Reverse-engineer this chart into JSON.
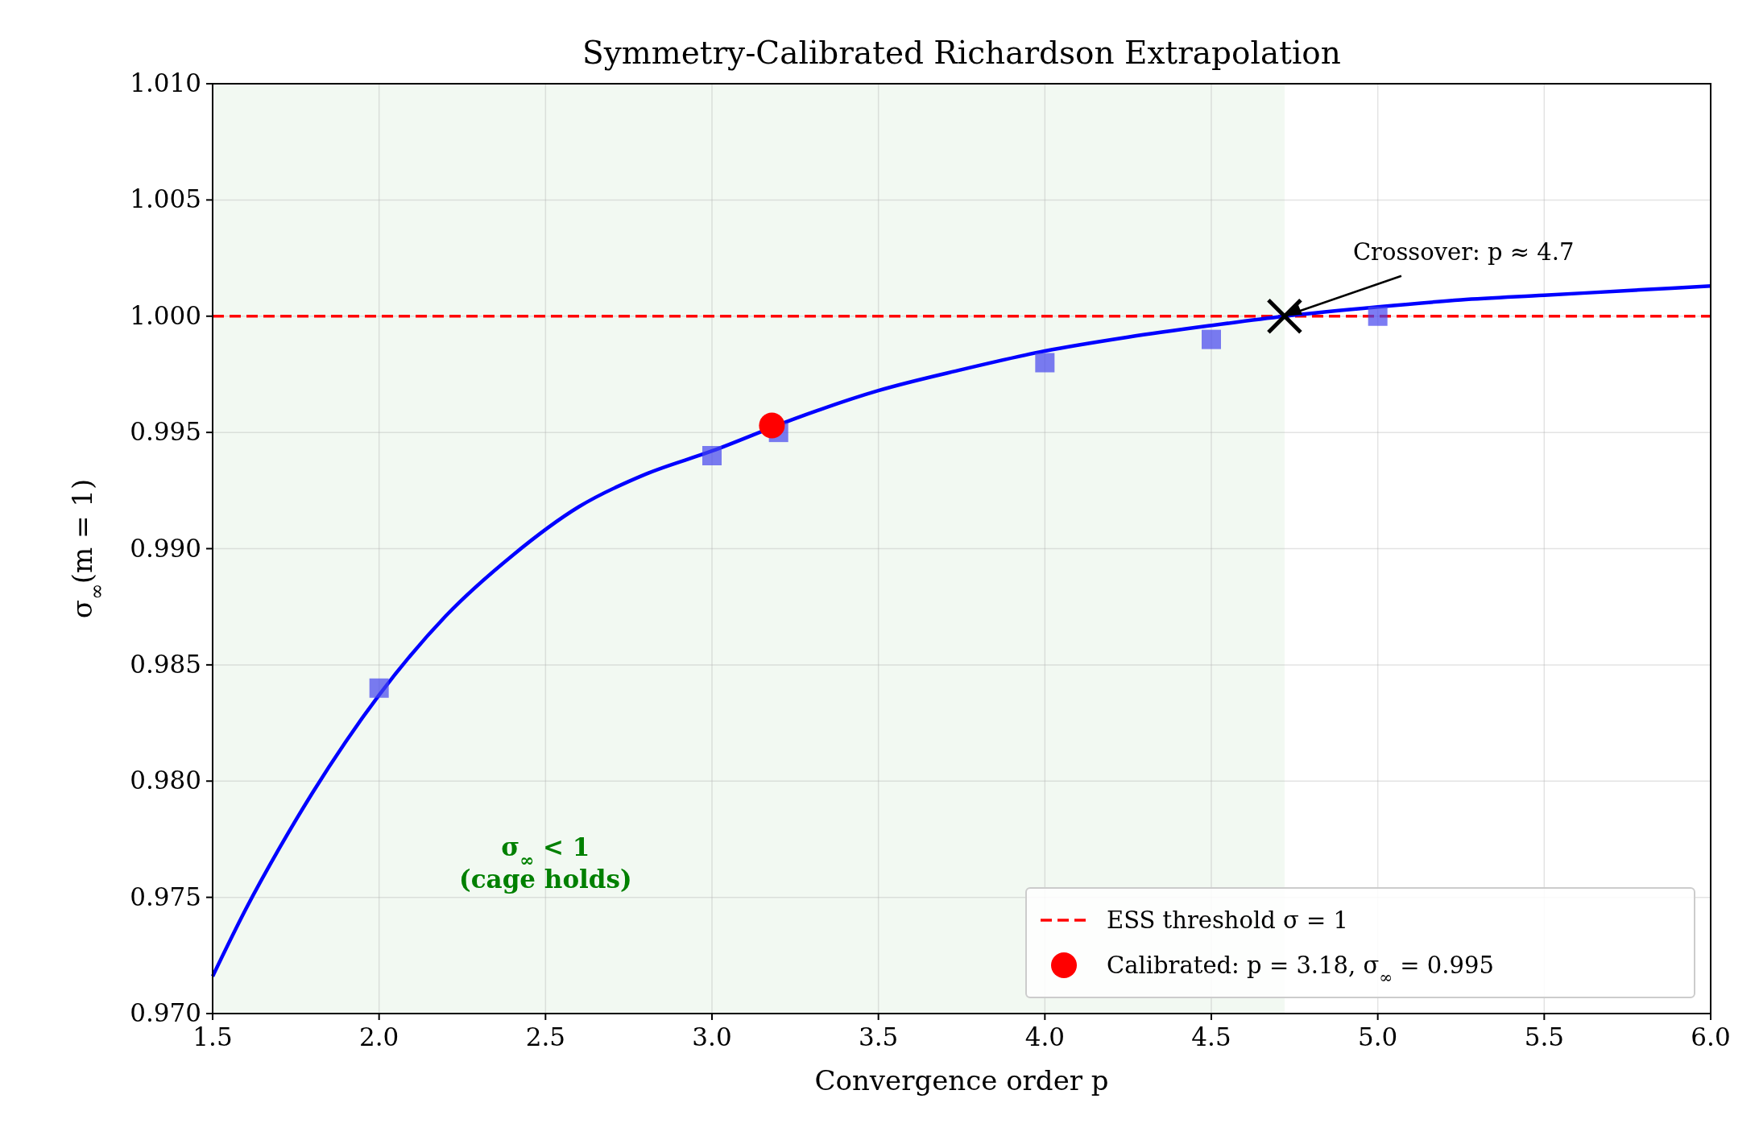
{
  "chart_data": {
    "type": "line",
    "title": "Symmetry-Calibrated Richardson Extrapolation",
    "xlabel": "Convergence order p",
    "ylabel": "σ$_{∞}$(m = 1)",
    "xlim": [
      1.5,
      6.0
    ],
    "ylim": [
      0.97,
      1.01
    ],
    "xticks": [
      1.5,
      {
        "value": 2,
        "label": "2.0"
      },
      2.5,
      {
        "value": 3,
        "label": "3.0"
      },
      3.5,
      {
        "value": 4,
        "label": "4.0"
      },
      4.5,
      {
        "value": 5,
        "label": "5.0"
      },
      5.5,
      {
        "value": 6,
        "label": "6.0"
      }
    ],
    "yticks": [
      {
        "value": 0.97,
        "label": "0.970"
      },
      {
        "value": 0.975,
        "label": "0.975"
      },
      {
        "value": 0.98,
        "label": "0.980"
      },
      {
        "value": 0.985,
        "label": "0.985"
      },
      {
        "value": 0.99,
        "label": "0.990"
      },
      {
        "value": 0.995,
        "label": "0.995"
      },
      {
        "value": 1.0,
        "label": "1.000"
      },
      {
        "value": 1.005,
        "label": "1.005"
      },
      {
        "value": 1.01,
        "label": "1.010"
      }
    ],
    "grid": true,
    "legend": "bottom right",
    "series": [
      {
        "color": "#0000ff",
        "marker": "none",
        "line_style": "solid",
        "x": [
          1.5,
          1.6,
          1.7,
          1.8,
          1.9,
          2.0,
          2.2,
          2.4,
          2.6,
          2.8,
          3.0,
          3.25,
          3.5,
          3.75,
          4.0,
          4.25,
          4.5,
          4.72,
          5.0,
          5.25,
          5.5,
          5.75,
          6.0
        ],
        "values": [
          0.9716,
          0.9745,
          0.9771,
          0.9795,
          0.9817,
          0.9837,
          0.9871,
          0.9897,
          0.9918,
          0.9932,
          0.9942,
          0.9956,
          0.9968,
          0.9977,
          0.9985,
          0.9991,
          0.9996,
          1.0,
          1.0004,
          1.0007,
          1.0009,
          1.0011,
          1.0013
        ]
      },
      {
        "type": "scatter",
        "color": "#4444ee",
        "marker": "square",
        "x": [
          2.0,
          3.0,
          3.2,
          4.0,
          4.5,
          5.0
        ],
        "values": [
          0.984,
          0.994,
          0.995,
          0.998,
          0.999,
          1.0
        ]
      },
      {
        "type": "scatter",
        "name": "Calibrated: p = 3.18, σ$_{∞}$ = 0.995",
        "color": "#ff0000",
        "marker": "circle",
        "x": [
          3.18
        ],
        "values": [
          0.9953
        ]
      },
      {
        "type": "scatter",
        "color": "#000000",
        "marker": "cross",
        "x": [
          4.72
        ],
        "values": [
          1.0
        ]
      }
    ],
    "ref_lines": [
      {
        "axis": "y",
        "value": 1.0,
        "label": "ESS threshold σ = 1",
        "color": "#ff0000",
        "line_style": "dashed"
      }
    ],
    "bands": [
      {
        "axis": "x",
        "from": 1.5,
        "to": 4.72,
        "label": "σ$_{∞}$ < 1\n(cage holds)",
        "color": "#008000"
      }
    ],
    "annotations": [
      {
        "text": "Crossover: p ≈ 4.7",
        "x": 4.72,
        "y": 1.0
      }
    ]
  }
}
